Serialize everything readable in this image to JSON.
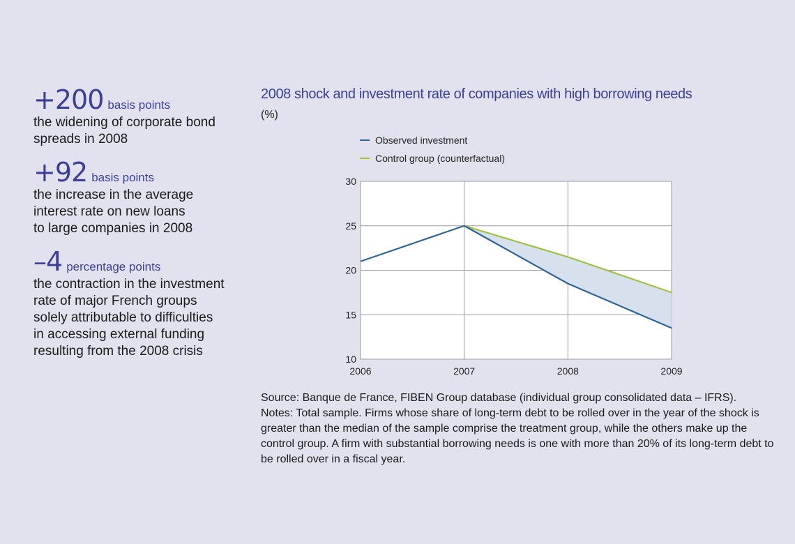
{
  "colors": {
    "accent": "#3b3f99",
    "observed": "#2e6496",
    "control": "#9cc43a",
    "gap_fill": "#d7e1ed",
    "background": "#e2e2ef"
  },
  "stats": [
    {
      "value": "+200",
      "unit": "basis points",
      "description": "the widening of corporate bond\nspreads in 2008"
    },
    {
      "value": "+92",
      "unit": "basis points",
      "description": "the increase in the average\ninterest rate on new loans\nto large companies in 2008"
    },
    {
      "value": "–4",
      "unit": "percentage points",
      "description": "the contraction in the investment\nrate of major French groups\nsolely attributable to difficulties\nin accessing external funding\nresulting from the 2008 crisis"
    }
  ],
  "chart_data": {
    "type": "line",
    "title": "2008 shock and investment rate of companies with high borrowing needs",
    "unit": "(%)",
    "x": [
      "2006",
      "2007",
      "2008",
      "2009"
    ],
    "series": [
      {
        "name": "Observed investment",
        "values": [
          21.0,
          25.0,
          18.5,
          13.5
        ]
      },
      {
        "name": "Control group (counterfactual)",
        "values": [
          null,
          25.0,
          21.5,
          17.5
        ]
      }
    ],
    "ylim": [
      10,
      30
    ],
    "yticks": [
      10,
      15,
      20,
      25,
      30
    ],
    "grid": true,
    "legend_position": "top-left",
    "shaded_gap": "between observed and control series"
  },
  "notes": {
    "source": "Source: Banque de France, FIBEN Group database (individual group consolidated data – IFRS).",
    "text": "Notes: Total sample. Firms whose share of long-term debt to be rolled over in the year of the shock is greater than the median of the sample comprise the treatment group, while the others make up the control group. A firm with substantial borrowing needs is one with more than 20% of its long-term debt to be rolled over in a fiscal year."
  }
}
